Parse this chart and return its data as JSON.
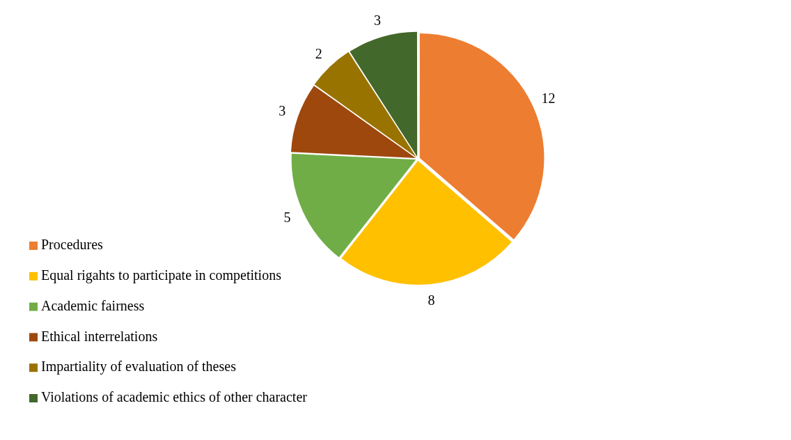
{
  "chart_data": {
    "type": "pie",
    "categories": [
      "Procedures",
      "Equal rigahts to participate in competitions",
      "Academic fairness",
      "Ethical interrelations",
      "Impartiality of evaluation of theses",
      "Violations of academic ethics of other character"
    ],
    "values": [
      12,
      8,
      5,
      3,
      2,
      3
    ],
    "colors": [
      "#ed7d31",
      "#ffc000",
      "#70ad47",
      "#9e480e",
      "#997300",
      "#43682b"
    ],
    "data_labels": true,
    "legend": "left"
  }
}
